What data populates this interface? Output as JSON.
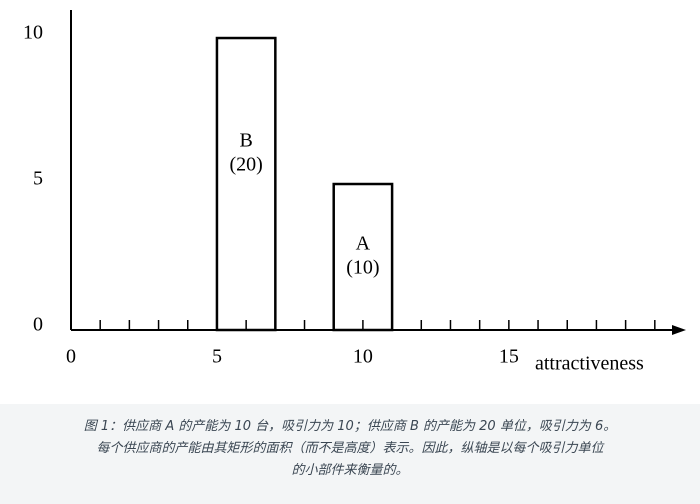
{
  "chart_data": {
    "type": "rect",
    "x_label": "attractiveness",
    "xlim": [
      0,
      21
    ],
    "ylim": [
      0,
      10.96
    ],
    "xticks": [
      0,
      5,
      10,
      15
    ],
    "yticks": [
      0,
      5,
      10
    ],
    "xminorticks": [
      1,
      2,
      3,
      4,
      6,
      7,
      8,
      9,
      11,
      12,
      13,
      14,
      16,
      17,
      18,
      19,
      20
    ],
    "categories": [
      "B",
      "A"
    ],
    "values": [
      10,
      5
    ],
    "x_edges": [
      [
        5,
        7
      ],
      [
        9,
        11
      ]
    ],
    "area_labels": [
      "(20)",
      "(10)"
    ],
    "color": "#000000"
  },
  "caption": [
    "图 1：供应商 A 的产能为 10 台，吸引力为 10；供应商 B 的产能为 20 单位，吸引力为 6。",
    "每个供应商的产能由其矩形的面积（而不是高度）表示。因此，纵轴是以每个吸引力单位",
    "的小部件来衡量的。"
  ]
}
